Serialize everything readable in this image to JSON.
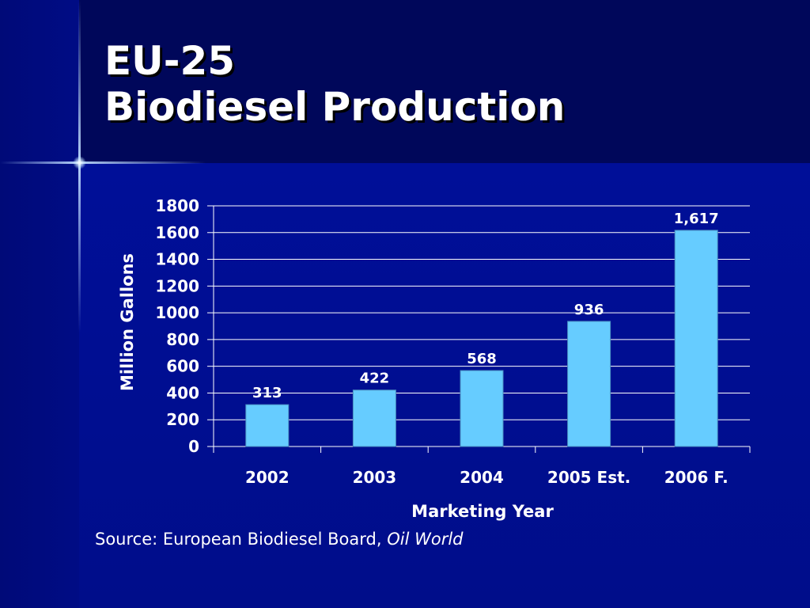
{
  "slide": {
    "title_line1": "EU-25",
    "title_line2": "Biodiesel Production"
  },
  "source": {
    "prefix": "Source: European Biodiesel Board, ",
    "italic": "Oil World"
  },
  "colors": {
    "background": "#000d8a",
    "bar_fill": "#66ccff",
    "text": "#ffffff",
    "gridline": "#ffffff"
  },
  "chart_data": {
    "type": "bar",
    "categories": [
      "2002",
      "2003",
      "2004",
      "2005 Est.",
      "2006 F."
    ],
    "values": [
      313,
      422,
      568,
      936,
      1617
    ],
    "data_labels": [
      "313",
      "422",
      "568",
      "936",
      "1,617"
    ],
    "xlabel": "Marketing Year",
    "ylabel": "Million Gallons",
    "ylim": [
      0,
      1800
    ],
    "yticks": [
      "0",
      "200",
      "400",
      "600",
      "800",
      "1000",
      "1200",
      "1400",
      "1600",
      "1800"
    ],
    "grid": true,
    "legend": "none"
  }
}
